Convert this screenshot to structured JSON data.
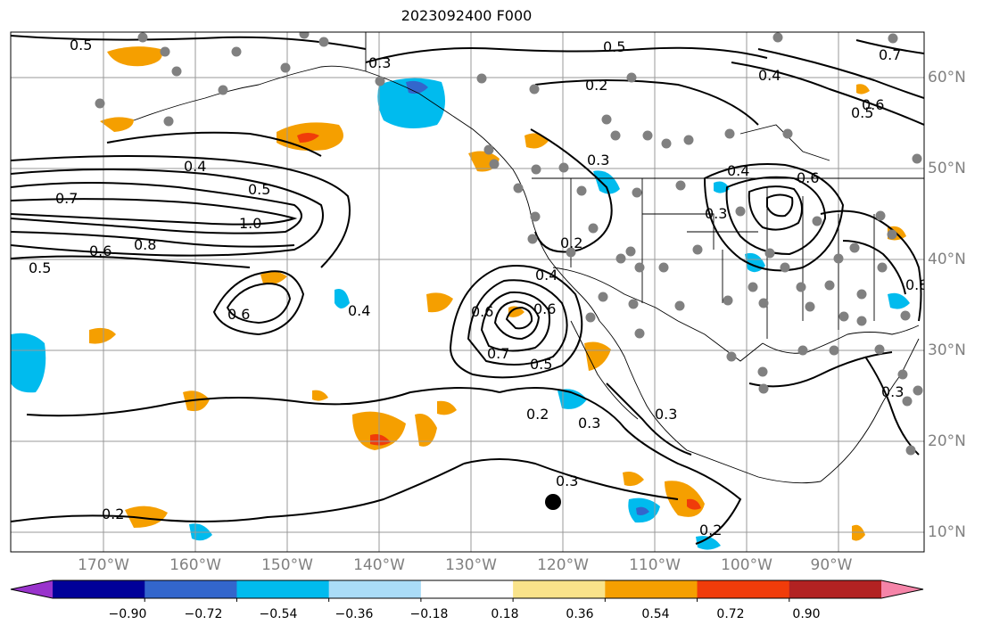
{
  "title": "2023092400 F000",
  "lon_labels": [
    "170°W",
    "160°W",
    "150°W",
    "140°W",
    "130°W",
    "120°W",
    "110°W",
    "100°W",
    "90°W"
  ],
  "lat_labels": [
    "60°N",
    "50°N",
    "40°N",
    "30°N",
    "20°N",
    "10°N"
  ],
  "colorbar": {
    "tick_labels": [
      "−0.90",
      "−0.72",
      "−0.54",
      "−0.36",
      "−0.18",
      "0.18",
      "0.36",
      "0.54",
      "0.72",
      "0.90"
    ],
    "colors": [
      "#9933cc",
      "#000099",
      "#3366cc",
      "#00bbee",
      "#aadcf7",
      "#ffffff",
      "#f9e38a",
      "#f59f00",
      "#f03c0a",
      "#b22222",
      "#f584a8"
    ]
  },
  "contour_labels": [
    "0.5",
    "0.5",
    "0.3",
    "0.2",
    "0.4",
    "0.7",
    "0.5",
    "0.6",
    "0.4",
    "0.5",
    "0.7",
    "1.0",
    "0.8",
    "0.6",
    "0.5",
    "0.6",
    "0.4",
    "0.3",
    "0.2",
    "0.4",
    "0.6",
    "0.3",
    "0.4",
    "0.6",
    "0.7",
    "0.5",
    "0.6",
    "0.8",
    "0.2",
    "0.3",
    "0.2",
    "0.3",
    "0.3",
    "0.2",
    "0.3"
  ],
  "shading_colors": {
    "positive": "#f59f00",
    "strong_positive": "#f03c0a",
    "negative": "#00bbee",
    "strong_negative": "#3366cc"
  },
  "marker_colors": {
    "station": "#808080",
    "highlight": "#000000"
  }
}
